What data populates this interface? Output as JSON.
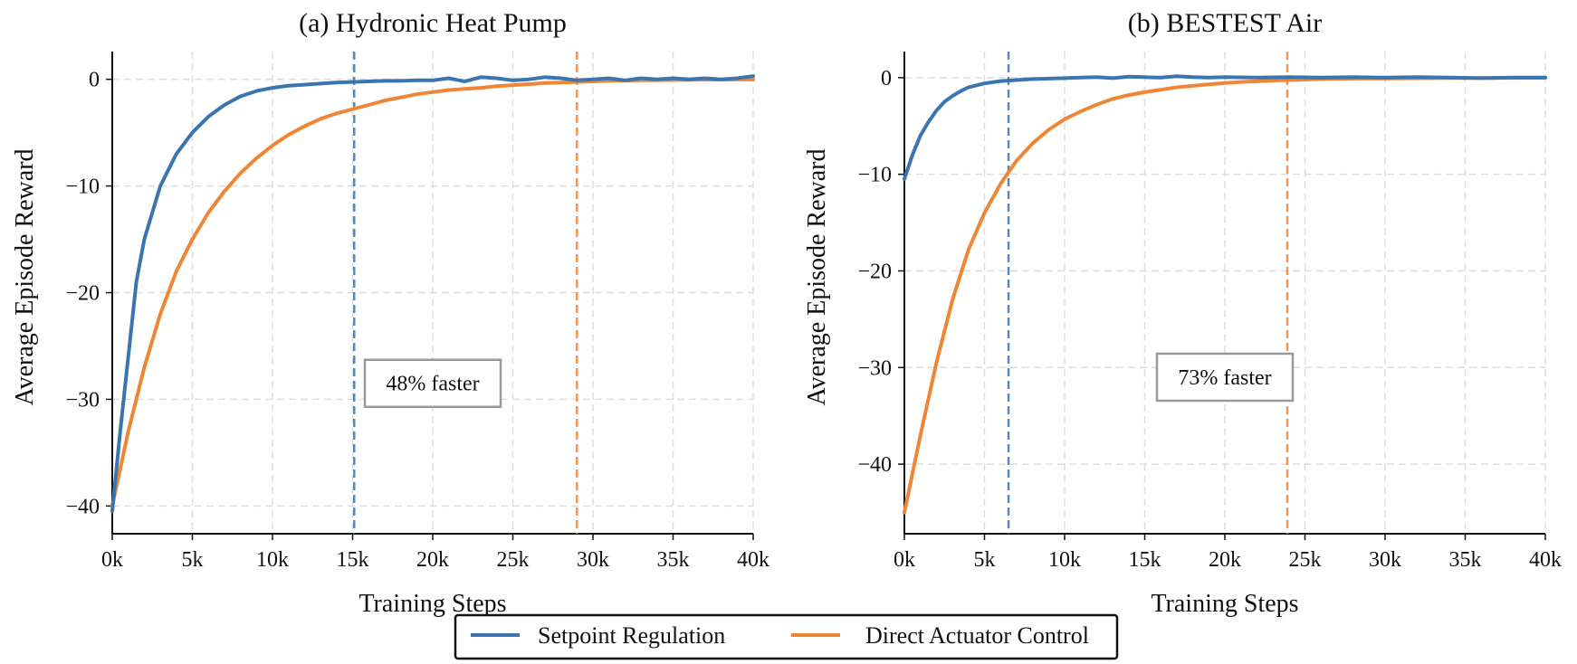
{
  "legend": {
    "items": [
      {
        "label": "Setpoint Regulation",
        "color": "#3b75af"
      },
      {
        "label": "Direct Actuator Control",
        "color": "#ef8636"
      }
    ]
  },
  "chart_data": [
    {
      "type": "line",
      "title": "(a) Hydronic Heat Pump",
      "xlabel": "Training Steps",
      "ylabel": "Average Episode Reward",
      "xlim": [
        0,
        40000
      ],
      "ylim": [
        -42.6,
        2.6
      ],
      "xticks": [
        0,
        5000,
        10000,
        15000,
        20000,
        25000,
        30000,
        35000,
        40000
      ],
      "xtick_labels": [
        "0k",
        "5k",
        "10k",
        "15k",
        "20k",
        "25k",
        "30k",
        "35k",
        "40k"
      ],
      "yticks": [
        0,
        -10,
        -20,
        -30,
        -40
      ],
      "ytick_labels": [
        "0",
        "−10",
        "−20",
        "−30",
        "−40"
      ],
      "grid": true,
      "series": [
        {
          "name": "Setpoint Regulation",
          "color": "#3b75af",
          "x": [
            0,
            500,
            1000,
            1500,
            2000,
            3000,
            4000,
            5000,
            6000,
            7000,
            8000,
            9000,
            10000,
            11000,
            12000,
            13000,
            14000,
            15000,
            16000,
            17000,
            18000,
            19000,
            20000,
            21000,
            22000,
            23000,
            24000,
            25000,
            26000,
            27000,
            28000,
            29000,
            30000,
            31000,
            32000,
            33000,
            34000,
            35000,
            36000,
            37000,
            38000,
            39000,
            40000
          ],
          "y": [
            -40.5,
            -33,
            -26,
            -19,
            -15,
            -10,
            -7,
            -5,
            -3.5,
            -2.4,
            -1.6,
            -1.1,
            -0.8,
            -0.6,
            -0.5,
            -0.4,
            -0.3,
            -0.25,
            -0.2,
            -0.15,
            -0.15,
            -0.1,
            -0.1,
            0.1,
            -0.2,
            0.2,
            0.1,
            -0.1,
            0.0,
            0.2,
            0.1,
            -0.1,
            0.0,
            0.1,
            -0.1,
            0.1,
            0.0,
            0.1,
            0.0,
            0.1,
            0.0,
            0.1,
            0.3
          ]
        },
        {
          "name": "Direct Actuator Control",
          "color": "#ef8636",
          "x": [
            0,
            1000,
            2000,
            3000,
            4000,
            5000,
            6000,
            7000,
            8000,
            9000,
            10000,
            11000,
            12000,
            13000,
            14000,
            15000,
            16000,
            17000,
            18000,
            19000,
            20000,
            21000,
            22000,
            23000,
            24000,
            25000,
            26000,
            27000,
            28000,
            29000,
            30000,
            31000,
            32000,
            33000,
            34000,
            35000,
            36000,
            37000,
            38000,
            39000,
            40000
          ],
          "y": [
            -40,
            -33,
            -27,
            -22,
            -18,
            -15,
            -12.5,
            -10.5,
            -8.8,
            -7.4,
            -6.2,
            -5.2,
            -4.4,
            -3.7,
            -3.2,
            -2.8,
            -2.4,
            -2.0,
            -1.7,
            -1.4,
            -1.2,
            -1.0,
            -0.9,
            -0.8,
            -0.65,
            -0.55,
            -0.45,
            -0.35,
            -0.3,
            -0.25,
            -0.2,
            -0.15,
            -0.12,
            -0.1,
            -0.08,
            -0.06,
            -0.05,
            -0.04,
            -0.03,
            -0.02,
            -0.02
          ]
        }
      ],
      "vlines": [
        {
          "x": 15100,
          "color": "#3b75af"
        },
        {
          "x": 29000,
          "color": "#ef8636"
        }
      ],
      "annotation": {
        "text": "48% faster",
        "x": 20000,
        "y": -28.5
      }
    },
    {
      "type": "line",
      "title": "(b) BESTEST Air",
      "xlabel": "Training Steps",
      "ylabel": "Average Episode Reward",
      "xlim": [
        0,
        40000
      ],
      "ylim": [
        -47.2,
        2.7
      ],
      "xticks": [
        0,
        5000,
        10000,
        15000,
        20000,
        25000,
        30000,
        35000,
        40000
      ],
      "xtick_labels": [
        "0k",
        "5k",
        "10k",
        "15k",
        "20k",
        "25k",
        "30k",
        "35k",
        "40k"
      ],
      "yticks": [
        0,
        -10,
        -20,
        -30,
        -40
      ],
      "ytick_labels": [
        "0",
        "−10",
        "−20",
        "−30",
        "−40"
      ],
      "grid": true,
      "series": [
        {
          "name": "Setpoint Regulation",
          "color": "#3b75af",
          "x": [
            0,
            500,
            1000,
            1500,
            2000,
            2500,
            3000,
            3500,
            4000,
            5000,
            6000,
            7000,
            8000,
            9000,
            10000,
            11000,
            12000,
            13000,
            14000,
            15000,
            16000,
            17000,
            18000,
            19000,
            20000,
            22000,
            24000,
            26000,
            28000,
            30000,
            32000,
            34000,
            36000,
            38000,
            40000
          ],
          "y": [
            -10.5,
            -8,
            -6,
            -4.6,
            -3.4,
            -2.5,
            -1.9,
            -1.4,
            -1.0,
            -0.6,
            -0.35,
            -0.25,
            -0.15,
            -0.1,
            -0.05,
            0.0,
            0.05,
            -0.05,
            0.1,
            0.05,
            0.0,
            0.15,
            0.05,
            0.0,
            0.05,
            0.0,
            0.05,
            0.0,
            0.05,
            0.0,
            0.05,
            0.0,
            -0.05,
            0.0,
            0.0
          ]
        },
        {
          "name": "Direct Actuator Control",
          "color": "#ef8636",
          "x": [
            0,
            1000,
            2000,
            3000,
            4000,
            5000,
            6000,
            7000,
            8000,
            9000,
            10000,
            11000,
            12000,
            13000,
            14000,
            15000,
            16000,
            17000,
            18000,
            19000,
            20000,
            21000,
            22000,
            23000,
            24000,
            25000,
            26000,
            28000,
            30000,
            32000,
            34000,
            36000,
            38000,
            40000
          ],
          "y": [
            -45,
            -37,
            -29.5,
            -23,
            -17.8,
            -14,
            -11,
            -8.6,
            -6.8,
            -5.4,
            -4.3,
            -3.5,
            -2.8,
            -2.2,
            -1.8,
            -1.5,
            -1.25,
            -1.0,
            -0.85,
            -0.7,
            -0.55,
            -0.45,
            -0.38,
            -0.3,
            -0.25,
            -0.2,
            -0.15,
            -0.1,
            -0.08,
            -0.06,
            -0.04,
            -0.03,
            -0.02,
            -0.01
          ]
        }
      ],
      "vlines": [
        {
          "x": 6500,
          "color": "#3b75af"
        },
        {
          "x": 23900,
          "color": "#ef8636"
        }
      ],
      "annotation": {
        "text": "73% faster",
        "x": 20000,
        "y": -31
      }
    }
  ]
}
